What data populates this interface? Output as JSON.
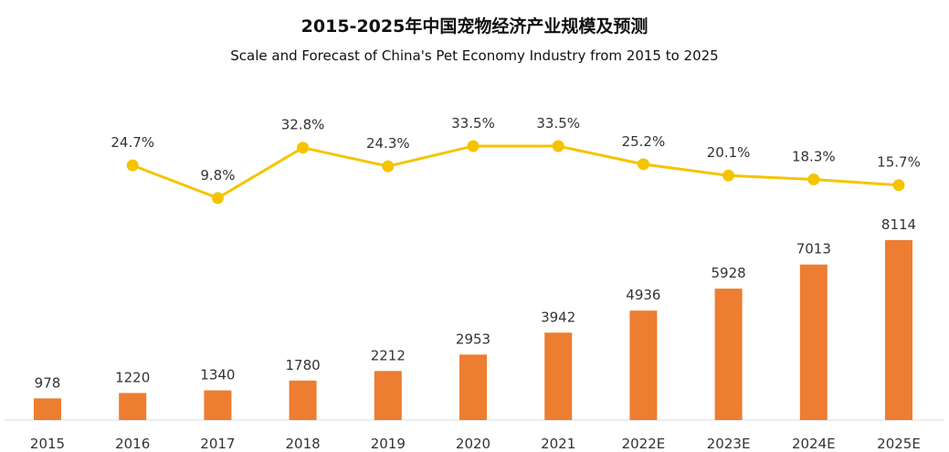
{
  "chart_data": {
    "type": "bar",
    "title": "2015-2025年中国宠物经济产业规模及预测",
    "subtitle": "Scale and Forecast of China's Pet Economy Industry from 2015 to 2025",
    "categories": [
      "2015",
      "2016",
      "2017",
      "2018",
      "2019",
      "2020",
      "2021",
      "2022E",
      "2023E",
      "2024E",
      "2025E"
    ],
    "series": [
      {
        "type": "bar",
        "color": "#ED7D31",
        "values": [
          978,
          1220,
          1340,
          1780,
          2212,
          2953,
          3942,
          4936,
          5928,
          7013,
          8114
        ],
        "value_labels": [
          "978",
          "1220",
          "1340",
          "1780",
          "2212",
          "2953",
          "3942",
          "4936",
          "5928",
          "7013",
          "8114"
        ]
      },
      {
        "type": "line",
        "color": "#F5C400",
        "values": [
          null,
          24.7,
          9.8,
          32.8,
          24.3,
          33.5,
          33.5,
          25.2,
          20.1,
          18.3,
          15.7
        ],
        "value_labels": [
          "",
          "24.7%",
          "9.8%",
          "32.8%",
          "24.3%",
          "33.5%",
          "33.5%",
          "25.2%",
          "20.1%",
          "18.3%",
          "15.7%"
        ]
      }
    ],
    "grid": false,
    "legend": "none"
  }
}
